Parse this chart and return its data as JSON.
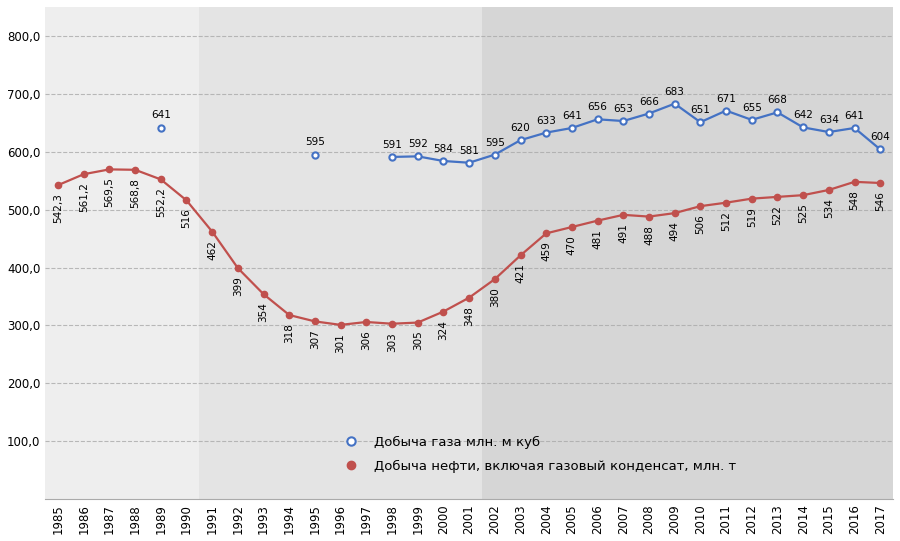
{
  "years": [
    1985,
    1986,
    1987,
    1988,
    1989,
    1990,
    1991,
    1992,
    1993,
    1994,
    1995,
    1996,
    1997,
    1998,
    1999,
    2000,
    2001,
    2002,
    2003,
    2004,
    2005,
    2006,
    2007,
    2008,
    2009,
    2010,
    2011,
    2012,
    2013,
    2014,
    2015,
    2016,
    2017
  ],
  "gas": [
    null,
    null,
    null,
    null,
    641,
    null,
    null,
    null,
    null,
    null,
    595,
    null,
    null,
    591,
    592,
    584,
    581,
    595,
    620,
    633,
    641,
    656,
    653,
    666,
    683,
    651,
    671,
    655,
    668,
    642,
    634,
    641,
    604
  ],
  "oil": [
    542.3,
    561.2,
    569.5,
    568.8,
    552.2,
    516,
    462,
    399,
    354,
    318,
    307,
    301,
    306,
    303,
    305,
    324,
    348,
    380,
    421,
    459,
    470,
    481,
    491,
    488,
    494,
    506,
    512,
    519,
    522,
    525,
    534,
    548,
    546
  ],
  "oil_labels": [
    "542,3",
    "561,2",
    "569,5",
    "568,8",
    "552,2",
    "516",
    "462",
    "399",
    "354",
    "318",
    "307",
    "301",
    "306",
    "303",
    "305",
    "324",
    "348",
    "380",
    "421",
    "459",
    "470",
    "481",
    "491",
    "488",
    "494",
    "506",
    "512",
    "519",
    "522",
    "525",
    "534",
    "548",
    "546"
  ],
  "gas_labels": [
    "",
    "",
    "",
    "",
    "641",
    "",
    "",
    "",
    "",
    "",
    "595",
    "",
    "",
    "591",
    "592",
    "584",
    "581",
    "595",
    "620",
    "633",
    "641",
    "656",
    "653",
    "666",
    "683",
    "651",
    "671",
    "655",
    "668",
    "642",
    "634",
    "641",
    "604"
  ],
  "ylim": [
    0,
    850
  ],
  "yticks": [
    100.0,
    200.0,
    300.0,
    400.0,
    500.0,
    600.0,
    700.0,
    800.0
  ],
  "line_gas_color": "#4472c4",
  "line_oil_color": "#c0504d",
  "legend_gas": "Добыча газа млн. м куб",
  "legend_oil": "Добыча нефти, включая газовый конденсат, млн. т",
  "label_fontsize": 7.5,
  "tick_fontsize": 8.5,
  "bg_left": "#eeeeee",
  "bg_mid": "#e4e4e4",
  "bg_right": "#d6d6d6"
}
